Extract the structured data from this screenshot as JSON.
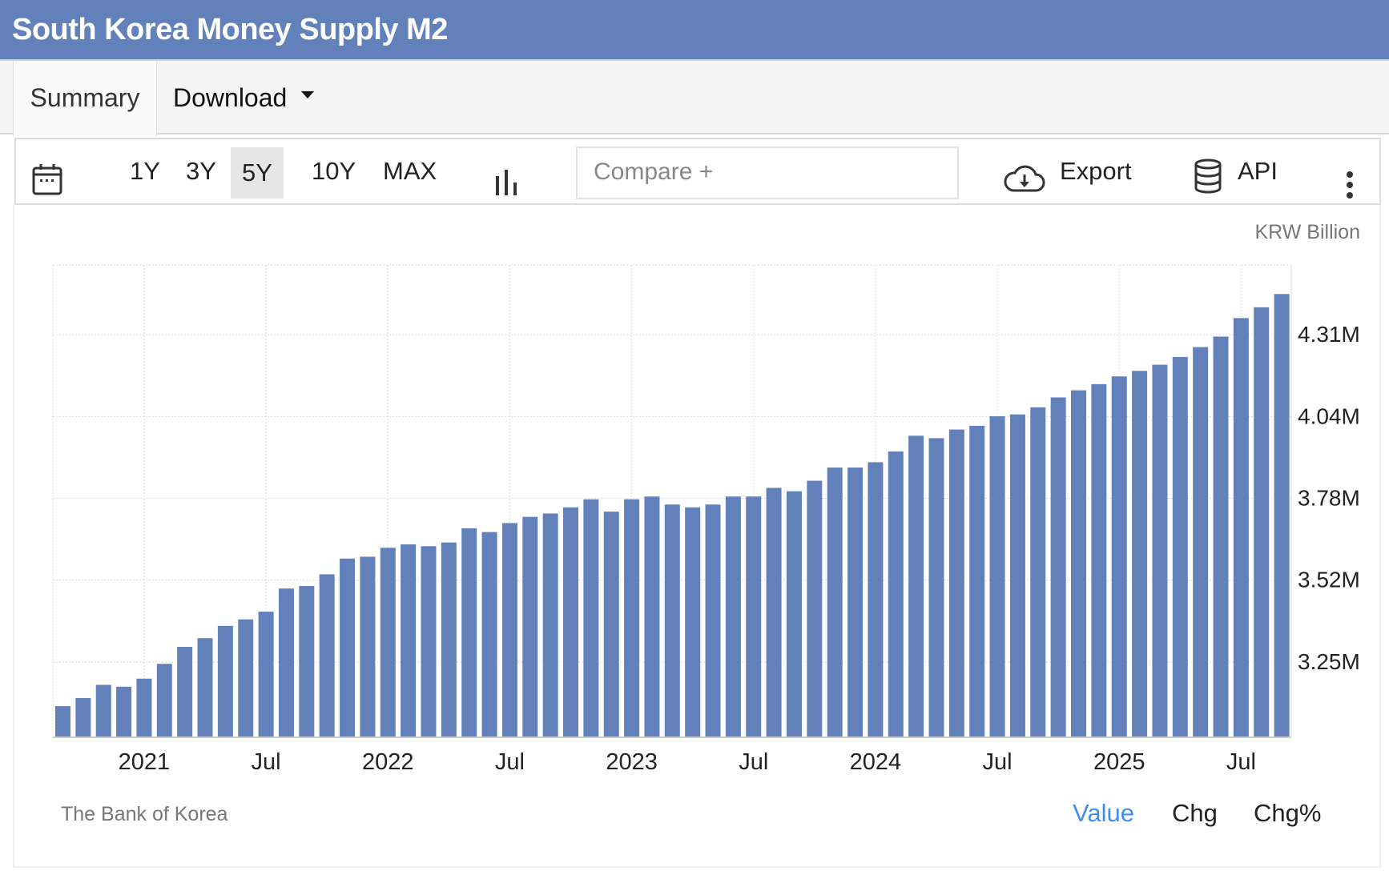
{
  "header": {
    "title": "South Korea Money Supply M2"
  },
  "tabs": [
    {
      "label": "Summary"
    },
    {
      "label": "Download"
    }
  ],
  "toolbar": {
    "ranges": [
      "1Y",
      "3Y",
      "5Y",
      "10Y",
      "MAX"
    ],
    "active_range": "5Y",
    "compare_placeholder": "Compare +",
    "export_label": "Export",
    "api_label": "API"
  },
  "colors": {
    "brand": "#6281bb",
    "bar": "#6281bb",
    "active_link": "#3d8ff0"
  },
  "footer": {
    "source": "The Bank of Korea",
    "modes": [
      "Value",
      "Chg",
      "Chg%"
    ],
    "active_mode": "Value"
  },
  "chart_data": {
    "type": "bar",
    "title": "South Korea Money Supply M2",
    "unit_label": "KRW Billion",
    "x_start": "2020-09",
    "x_end": "2025-09",
    "frequency": "monthly",
    "x_tick_labels": [
      {
        "index": 4,
        "label": "2021"
      },
      {
        "index": 10,
        "label": "Jul"
      },
      {
        "index": 16,
        "label": "2022"
      },
      {
        "index": 22,
        "label": "Jul"
      },
      {
        "index": 28,
        "label": "2023"
      },
      {
        "index": 34,
        "label": "Jul"
      },
      {
        "index": 40,
        "label": "2024"
      },
      {
        "index": 46,
        "label": "Jul"
      },
      {
        "index": 52,
        "label": "2025"
      },
      {
        "index": 58,
        "label": "Jul"
      }
    ],
    "y_ticks": [
      {
        "value": 3.25,
        "label": "3.25M"
      },
      {
        "value": 3.515,
        "label": "3.52M"
      },
      {
        "value": 3.78,
        "label": "3.78M"
      },
      {
        "value": 4.045,
        "label": "4.04M"
      },
      {
        "value": 4.31,
        "label": "4.31M"
      }
    ],
    "ylim": [
      3.006,
      4.536
    ],
    "y_units": "millions of KRW billion",
    "grid": true,
    "values": [
      3.107,
      3.133,
      3.176,
      3.17,
      3.196,
      3.244,
      3.299,
      3.327,
      3.367,
      3.388,
      3.413,
      3.488,
      3.496,
      3.534,
      3.585,
      3.591,
      3.62,
      3.631,
      3.625,
      3.637,
      3.683,
      3.671,
      3.7,
      3.72,
      3.731,
      3.751,
      3.777,
      3.737,
      3.777,
      3.786,
      3.76,
      3.751,
      3.76,
      3.786,
      3.786,
      3.814,
      3.803,
      3.837,
      3.88,
      3.88,
      3.897,
      3.932,
      3.983,
      3.975,
      4.003,
      4.015,
      4.046,
      4.052,
      4.075,
      4.107,
      4.13,
      4.15,
      4.175,
      4.193,
      4.213,
      4.238,
      4.27,
      4.304,
      4.364,
      4.399,
      4.442
    ]
  }
}
